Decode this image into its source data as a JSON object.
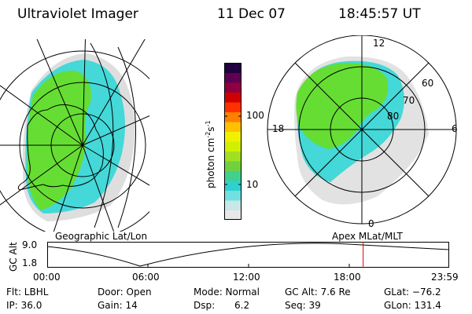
{
  "header": {
    "instrument": "Ultraviolet Imager",
    "date": "11 Dec 07",
    "time": "18:45:57 UT"
  },
  "left_panel": {
    "caption": "Geographic Lat/Lon"
  },
  "right_panel": {
    "caption": "Apex MLat/MLT",
    "mlt_labels": [
      "12",
      "18",
      "6",
      "0"
    ],
    "lat_labels": [
      "60",
      "70",
      "80"
    ]
  },
  "colorbar": {
    "unit_label": "photon cm",
    "unit_sup1": "-2",
    "unit_mid": "s",
    "unit_sup2": "-1",
    "tick_labels": [
      "100",
      "10"
    ],
    "colors": [
      "#e8e8e8",
      "#c8e8e8",
      "#70e0e0",
      "#30d0d0",
      "#40d090",
      "#70d040",
      "#a0e020",
      "#d0f000",
      "#f0f000",
      "#ffc000",
      "#ff8000",
      "#ff3000",
      "#d00000",
      "#900040",
      "#600050",
      "#200040"
    ]
  },
  "orbit_plot": {
    "y_axis_label": "GC Alt",
    "y_ticks": [
      "9.0",
      "1.8"
    ],
    "x_ticks": [
      "00:00",
      "06:00",
      "12:00",
      "18:00",
      "23:59"
    ],
    "current_time_fraction": 0.786
  },
  "info": {
    "filter": "Flt: LBHL",
    "ip": "IP: 36.0",
    "door": "Door: Open",
    "gain": "Gain: 14",
    "mode": "Mode: Normal",
    "dsp_label": "Dsp:",
    "dsp_value": "6.2",
    "gc_alt": "GC Alt: 7.6 Re",
    "seq": "Seq: 39",
    "glat": "GLat: −76.2",
    "glon": "GLon: 131.4"
  },
  "colors": {
    "green": "#66dd33",
    "cyan": "#44d8d8",
    "pale": "#dcdcdc",
    "marker": "#dd0000"
  }
}
